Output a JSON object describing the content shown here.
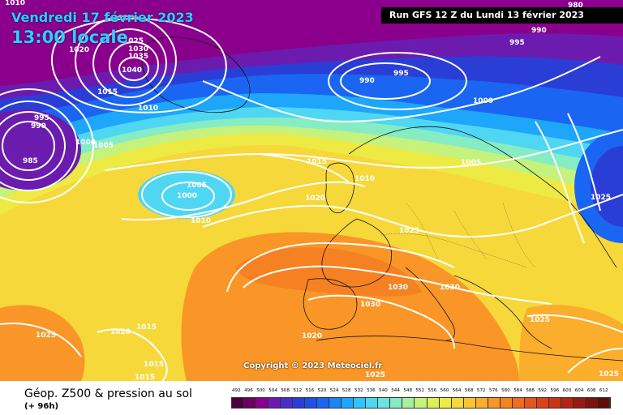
{
  "header": {
    "date": "Vendredi 17 février 2023",
    "time": "13:00 locale",
    "run": "Run GFS 12 Z du Lundi 13 février 2023"
  },
  "footer": {
    "title": "Géop. Z500 & pression au sol",
    "subtitle": "(+ 96h)",
    "copyright": "Copyright © 2023 Meteociel.fr"
  },
  "legend": {
    "values": [
      "492",
      "496",
      "500",
      "504",
      "508",
      "512",
      "516",
      "520",
      "524",
      "528",
      "532",
      "536",
      "540",
      "544",
      "548",
      "552",
      "556",
      "560",
      "564",
      "568",
      "572",
      "576",
      "580",
      "584",
      "588",
      "592",
      "596",
      "600",
      "604",
      "608",
      "612"
    ],
    "colors": [
      "#4b0040",
      "#6a0060",
      "#8a008c",
      "#6b1cae",
      "#4b2dc8",
      "#2a3ed6",
      "#1f4fe3",
      "#1a66f2",
      "#1a85f7",
      "#1ea6fa",
      "#30c2fa",
      "#4fd6f2",
      "#6be3e0",
      "#86ecc4",
      "#a6f1a0",
      "#c4f27c",
      "#dcf05a",
      "#eeea44",
      "#f7d83a",
      "#fac432",
      "#fbad2c",
      "#f99627",
      "#f58123",
      "#ef6c20",
      "#e6561c",
      "#d94318",
      "#c93416",
      "#b52412",
      "#9a1a10",
      "#7e120c",
      "#5e0c08"
    ]
  },
  "isobar_labels": [
    "1010",
    "1020",
    "1025",
    "1030",
    "1035",
    "1040",
    "1015",
    "1010",
    "995",
    "990",
    "1000",
    "1005",
    "985",
    "995",
    "990",
    "1000",
    "990",
    "995",
    "980",
    "1015",
    "1010",
    "1005",
    "1005",
    "1000",
    "1010",
    "1020",
    "1025",
    "1025",
    "1030",
    "1030",
    "1030",
    "1020",
    "1015",
    "1025",
    "1025",
    "1025",
    "1015",
    "1015",
    "1020",
    "1025"
  ]
}
